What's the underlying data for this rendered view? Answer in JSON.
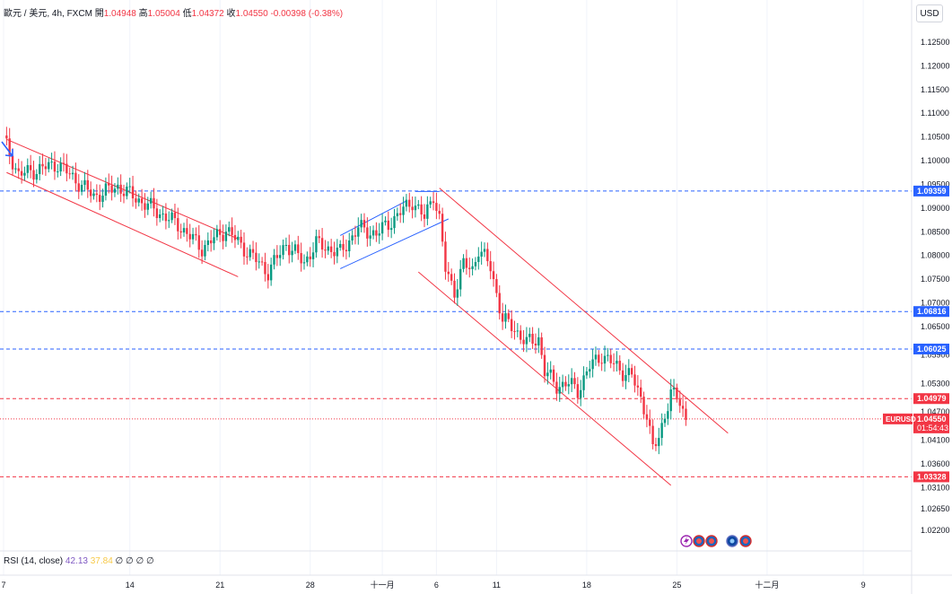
{
  "header": {
    "symbol_label": "歐元 / 美元, 4h, FXCM",
    "open_label": "開",
    "open_value": "1.04948",
    "high_label": "高",
    "high_value": "1.05004",
    "low_label": "低",
    "low_value": "1.04372",
    "close_label": "收",
    "close_value": "1.04550",
    "change_value": "-0.00398 (-0.38%)"
  },
  "currency_button": "USD",
  "rsi": {
    "label": "RSI (14, close)",
    "value1": "42.13",
    "value2": "37.84",
    "placeholders": [
      "∅",
      "∅",
      "∅",
      "∅"
    ]
  },
  "colors": {
    "up": "#089981",
    "down": "#f23645",
    "blue": "#2962ff",
    "channel_red": "#f23645"
  },
  "chart_data": {
    "type": "candlestick",
    "y_ticks": [
      "1.12500",
      "1.12000",
      "1.11500",
      "1.11000",
      "1.10500",
      "1.10000",
      "1.09500",
      "1.09000",
      "1.08500",
      "1.08000",
      "1.07500",
      "1.07000",
      "1.06500",
      "1.05900",
      "1.05300",
      "1.04700",
      "1.04100",
      "1.03600",
      "1.03100",
      "1.02650",
      "1.02200"
    ],
    "x_ticks": [
      {
        "label": "7",
        "t": 0
      },
      {
        "label": "14",
        "t": 42
      },
      {
        "label": "21",
        "t": 72
      },
      {
        "label": "28",
        "t": 102
      },
      {
        "label": "十一月",
        "t": 126
      },
      {
        "label": "6",
        "t": 144
      },
      {
        "label": "11",
        "t": 164
      },
      {
        "label": "18",
        "t": 194
      },
      {
        "label": "25",
        "t": 224
      },
      {
        "label": "十二月",
        "t": 254
      },
      {
        "label": "9",
        "t": 286
      }
    ],
    "price_labels": [
      {
        "text": "1.09359",
        "price": 1.09359,
        "color": "#2962ff",
        "style": "dashed"
      },
      {
        "text": "1.06816",
        "price": 1.06816,
        "color": "#2962ff",
        "style": "dashed"
      },
      {
        "text": "1.06025",
        "price": 1.06025,
        "color": "#2962ff",
        "style": "dashed"
      },
      {
        "text": "1.04979",
        "price": 1.04979,
        "color": "#f23645",
        "style": "dashed"
      },
      {
        "text": "1.04550",
        "price": 1.0455,
        "color": "#f23645",
        "style": "dotted",
        "tag": "EURUSD",
        "countdown": "01:54:43"
      },
      {
        "text": "1.03328",
        "price": 1.03328,
        "color": "#f23645",
        "style": "dashed"
      }
    ],
    "trend_lines": [
      {
        "color": "#f23645",
        "from": [
          1,
          1.1045
        ],
        "to": [
          78,
          1.0835
        ]
      },
      {
        "color": "#f23645",
        "from": [
          1,
          1.0975
        ],
        "to": [
          78,
          1.0755
        ]
      },
      {
        "color": "#2962ff",
        "from": [
          112,
          1.0842
        ],
        "to": [
          134,
          1.0915
        ]
      },
      {
        "color": "#2962ff",
        "from": [
          112,
          1.0772
        ],
        "to": [
          148,
          1.0877
        ]
      },
      {
        "color": "#f23645",
        "from": [
          145,
          1.0942
        ],
        "to": [
          241,
          1.0425
        ]
      },
      {
        "color": "#f23645",
        "from": [
          138,
          1.0765
        ],
        "to": [
          222,
          1.0315
        ]
      }
    ],
    "pivot": 1.0935,
    "key_points": [
      [
        0,
        1.1045
      ],
      [
        5,
        1.097
      ],
      [
        18,
        1.0993
      ],
      [
        30,
        1.0925
      ],
      [
        38,
        1.0945
      ],
      [
        48,
        1.0905
      ],
      [
        58,
        1.0865
      ],
      [
        66,
        1.0815
      ],
      [
        74,
        1.0855
      ],
      [
        80,
        1.0815
      ],
      [
        88,
        1.0765
      ],
      [
        94,
        1.0825
      ],
      [
        100,
        1.0785
      ],
      [
        104,
        1.0825
      ],
      [
        112,
        1.0805
      ],
      [
        118,
        1.0858
      ],
      [
        124,
        1.0845
      ],
      [
        130,
        1.0878
      ],
      [
        136,
        1.0915
      ],
      [
        140,
        1.0878
      ],
      [
        143,
        1.093
      ],
      [
        145,
        1.0875
      ],
      [
        147,
        1.077
      ],
      [
        150,
        1.0725
      ],
      [
        153,
        1.078
      ],
      [
        156,
        1.077
      ],
      [
        158,
        1.0815
      ],
      [
        162,
        1.0775
      ],
      [
        166,
        1.0665
      ],
      [
        170,
        1.0645
      ],
      [
        174,
        1.0615
      ],
      [
        178,
        1.0625
      ],
      [
        180,
        1.0555
      ],
      [
        184,
        1.0525
      ],
      [
        188,
        1.053
      ],
      [
        191,
        1.0515
      ],
      [
        195,
        1.0565
      ],
      [
        199,
        1.059
      ],
      [
        203,
        1.057
      ],
      [
        206,
        1.0555
      ],
      [
        209,
        1.0545
      ],
      [
        212,
        1.0498
      ],
      [
        214,
        1.0465
      ],
      [
        216,
        1.039
      ],
      [
        218,
        1.0415
      ],
      [
        220,
        1.0465
      ],
      [
        222,
        1.051
      ],
      [
        225,
        1.049
      ],
      [
        227,
        1.0455
      ]
    ]
  }
}
